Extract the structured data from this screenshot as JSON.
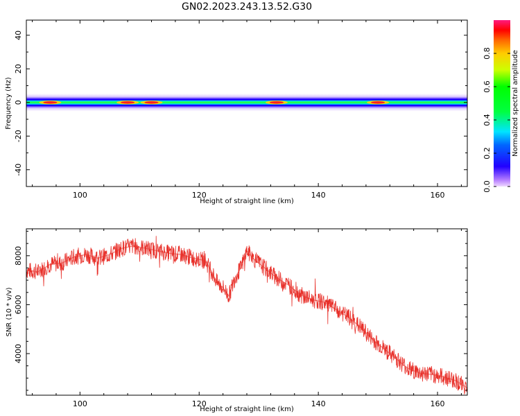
{
  "title": "GN02.2023.243.13.52.G30",
  "chart_data": [
    {
      "type": "heatmap",
      "xlabel": "Height of straight line (km)",
      "ylabel": "Frequency (Hz)",
      "xlim": [
        91,
        165
      ],
      "ylim": [
        -50,
        49
      ],
      "xticks": [
        100,
        120,
        140,
        160
      ],
      "yticks": [
        -40,
        -20,
        0,
        20,
        40
      ],
      "colorbar": {
        "label": "Normalized spectral amplitude",
        "range": [
          0,
          1
        ],
        "ticks": [
          0.0,
          0.2,
          0.4,
          0.6,
          0.8
        ]
      },
      "band": {
        "center_frequency_hz": 0,
        "x_start": 91,
        "x_end": 165,
        "peaks_x": [
          95,
          108,
          112,
          133,
          150
        ]
      }
    },
    {
      "type": "line",
      "xlabel": "Height of straight line (km)",
      "ylabel": "SNR (10 * v/v)",
      "xlim": [
        91,
        165
      ],
      "ylim": [
        2300,
        9100
      ],
      "xticks": [
        100,
        120,
        140,
        160
      ],
      "yticks": [
        4000,
        6000,
        8000
      ],
      "color": "#e8302a",
      "x": [
        91,
        93,
        95,
        97,
        99,
        101,
        103,
        105,
        107,
        109,
        111,
        113,
        115,
        117,
        119,
        121,
        122,
        123,
        124,
        125,
        126,
        127,
        128,
        129,
        131,
        133,
        135,
        137,
        139,
        141,
        143,
        145,
        147,
        149,
        151,
        153,
        155,
        157,
        159,
        161,
        163,
        165
      ],
      "y": [
        7400,
        7350,
        7650,
        7700,
        7950,
        8050,
        7900,
        8050,
        8300,
        8400,
        8300,
        8200,
        8100,
        8050,
        7900,
        7800,
        7400,
        6900,
        6700,
        6350,
        7100,
        7500,
        8200,
        7900,
        7500,
        7100,
        6800,
        6400,
        6200,
        6100,
        5800,
        5500,
        5100,
        4600,
        4200,
        3800,
        3400,
        3200,
        3150,
        3050,
        2900,
        2600
      ]
    }
  ]
}
